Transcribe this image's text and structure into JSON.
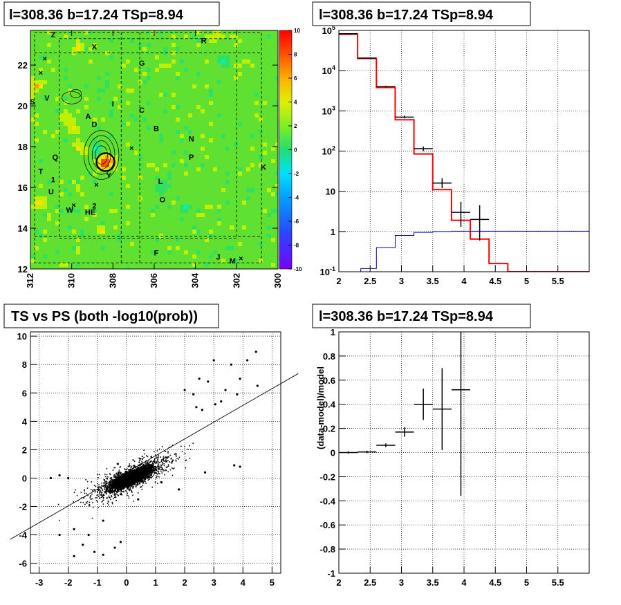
{
  "panels": {
    "skymap": {
      "title": "l=308.36 b=17.24 TSp=8.94"
    },
    "spectrum": {
      "title": "l=308.36 b=17.24 TSp=8.94"
    },
    "scatter": {
      "title": "TS vs PS (both -log10(prob))"
    },
    "residual": {
      "title": "l=308.36 b=17.24 TSp=8.94"
    }
  },
  "chart_data": [
    {
      "type": "heatmap",
      "title": "l=308.36 b=17.24 TSp=8.94",
      "xlim": [
        312,
        300
      ],
      "ylim": [
        12,
        23.7
      ],
      "x_ticks": [
        "312",
        "310",
        "308",
        "306",
        "304",
        "302",
        "300"
      ],
      "y_ticks": [
        "12",
        "14",
        "16",
        "18",
        "20",
        "22"
      ],
      "zlim": [
        -10,
        10
      ],
      "z_ticks": [
        "10",
        "8",
        "6",
        "4",
        "2",
        "0",
        "-2",
        "-4",
        "-6",
        "-8",
        "-10"
      ],
      "palette": [
        "#7a00ff",
        "#2a46ff",
        "#00a0ff",
        "#00d8ff",
        "#00f0c0",
        "#30e060",
        "#60e030",
        "#c0f000",
        "#ffe000",
        "#ffa000",
        "#ff5000",
        "#ff0000"
      ],
      "labels": [
        {
          "text": "Z",
          "x": 310.9,
          "y": 23.5
        },
        {
          "text": "X",
          "x": 308.9,
          "y": 22.9
        },
        {
          "text": "R",
          "x": 303.6,
          "y": 23.2
        },
        {
          "text": "G",
          "x": 306.6,
          "y": 22.1
        },
        {
          "text": "S",
          "x": 311.9,
          "y": 20.2
        },
        {
          "text": "V",
          "x": 311.2,
          "y": 20.4
        },
        {
          "text": "I",
          "x": 308.0,
          "y": 20.1
        },
        {
          "text": "C",
          "x": 306.6,
          "y": 19.8
        },
        {
          "text": "A",
          "x": 309.2,
          "y": 19.5
        },
        {
          "text": "D",
          "x": 308.9,
          "y": 19.1
        },
        {
          "text": "B",
          "x": 305.9,
          "y": 18.9
        },
        {
          "text": "N",
          "x": 304.2,
          "y": 18.4
        },
        {
          "text": "Q",
          "x": 310.8,
          "y": 17.5
        },
        {
          "text": "P",
          "x": 304.2,
          "y": 17.5
        },
        {
          "text": "K",
          "x": 300.7,
          "y": 17.0
        },
        {
          "text": "T",
          "x": 311.5,
          "y": 16.8
        },
        {
          "text": "Y",
          "x": 308.2,
          "y": 16.6
        },
        {
          "text": "1",
          "x": 310.9,
          "y": 16.4
        },
        {
          "text": "L",
          "x": 305.7,
          "y": 16.3
        },
        {
          "text": "U",
          "x": 311.0,
          "y": 15.8
        },
        {
          "text": "O",
          "x": 305.6,
          "y": 15.4
        },
        {
          "text": "W",
          "x": 310.1,
          "y": 14.9
        },
        {
          "text": "2",
          "x": 308.9,
          "y": 15.1
        },
        {
          "text": "HE",
          "x": 309.1,
          "y": 14.8
        },
        {
          "text": "F",
          "x": 305.9,
          "y": 12.8
        },
        {
          "text": "J",
          "x": 302.9,
          "y": 12.6
        },
        {
          "text": "M",
          "x": 302.2,
          "y": 12.4
        }
      ],
      "source_marker": {
        "x": 308.36,
        "y": 17.24
      }
    },
    {
      "type": "line",
      "title": "l=308.36 b=17.24 TSp=8.94",
      "xlim": [
        2,
        6
      ],
      "ylim": [
        0.1,
        100000
      ],
      "yscale": "log",
      "x_ticks": [
        "2",
        "2.5",
        "3",
        "3.5",
        "4",
        "4.5",
        "5",
        "5.5"
      ],
      "y_ticks": [
        "10^-1",
        "1",
        "10",
        "10^2",
        "10^3",
        "10^4",
        "10^5"
      ],
      "series": [
        {
          "type": "step",
          "color": "#ff0000",
          "edges": [
            2,
            2.3,
            2.6,
            2.9,
            3.2,
            3.5,
            3.8,
            4.1,
            4.4,
            4.7,
            5,
            6
          ],
          "values": [
            80000,
            20000,
            3800,
            600,
            85,
            11,
            1.9,
            0.65,
            0.16,
            0.1,
            0.1
          ]
        },
        {
          "type": "step",
          "color": "#0000cc",
          "edges": [
            2.05,
            2.35,
            2.6,
            2.9,
            3.2,
            3.5,
            3.8,
            6
          ],
          "values": [
            0.1,
            0.12,
            0.4,
            0.8,
            0.95,
            1.0,
            1.02
          ]
        },
        {
          "type": "errorbar",
          "color": "#000000",
          "points": [
            {
              "x": 2.15,
              "y": 83000,
              "xerr": 0.15,
              "ylo": 82000,
              "yhi": 84000
            },
            {
              "x": 2.45,
              "y": 20500,
              "xerr": 0.15,
              "ylo": 20000,
              "yhi": 21000
            },
            {
              "x": 2.75,
              "y": 4000,
              "xerr": 0.15,
              "ylo": 3800,
              "yhi": 4200
            },
            {
              "x": 3.05,
              "y": 700,
              "xerr": 0.15,
              "ylo": 650,
              "yhi": 760
            },
            {
              "x": 3.35,
              "y": 115,
              "xerr": 0.15,
              "ylo": 100,
              "yhi": 130
            },
            {
              "x": 3.65,
              "y": 16,
              "xerr": 0.15,
              "ylo": 12,
              "yhi": 21
            },
            {
              "x": 3.95,
              "y": 3.0,
              "xerr": 0.15,
              "ylo": 1.3,
              "yhi": 5.5
            },
            {
              "x": 4.25,
              "y": 2.0,
              "xerr": 0.15,
              "ylo": 0.6,
              "yhi": 4.5
            }
          ]
        }
      ]
    },
    {
      "type": "scatter",
      "title": "TS vs PS (both -log10(prob))",
      "xlim": [
        -3.3,
        5.3
      ],
      "ylim": [
        -6.7,
        10.3
      ],
      "x_ticks": [
        "-3",
        "-2",
        "-1",
        "0",
        "1",
        "2",
        "3",
        "4",
        "5"
      ],
      "y_ticks": [
        "-6",
        "-4",
        "-2",
        "0",
        "2",
        "4",
        "6",
        "8",
        "10"
      ],
      "fit_line": {
        "slope": 1.18,
        "intercept": 0.4
      },
      "outlier_points": [
        [
          4.45,
          8.9
        ],
        [
          4.15,
          8.3
        ],
        [
          3.6,
          8.0
        ],
        [
          3.0,
          8.3
        ],
        [
          4.5,
          6.5
        ],
        [
          3.9,
          7.0
        ],
        [
          3.8,
          5.9
        ],
        [
          3.4,
          6.2
        ],
        [
          2.5,
          7.0
        ],
        [
          2.3,
          5.9
        ],
        [
          2.0,
          6.2
        ],
        [
          2.8,
          6.8
        ],
        [
          3.25,
          5.4
        ],
        [
          3.05,
          5.2
        ],
        [
          3.7,
          0.9
        ],
        [
          3.9,
          0.8
        ],
        [
          2.4,
          5.0
        ],
        [
          2.6,
          4.8
        ],
        [
          -2.3,
          -4.0
        ],
        [
          -1.8,
          -5.5
        ],
        [
          -1.5,
          -4.7
        ],
        [
          -1.1,
          -5.2
        ],
        [
          -0.8,
          -5.4
        ],
        [
          -0.4,
          -4.9
        ],
        [
          -0.2,
          -4.5
        ],
        [
          -2.6,
          0.0
        ],
        [
          -2.3,
          0.2
        ],
        [
          -1.8,
          -3.6
        ],
        [
          -1.3,
          -4.0
        ],
        [
          -0.8,
          -3.0
        ],
        [
          1.2,
          -0.3
        ],
        [
          1.8,
          -0.8
        ],
        [
          2.7,
          0.4
        ],
        [
          -2.0,
          0.0
        ],
        [
          -0.3,
          1.0
        ],
        [
          0.4,
          -1.5
        ]
      ],
      "cloud": {
        "points": 6000,
        "center": [
          0.15,
          0.05
        ],
        "seed": 42
      }
    },
    {
      "type": "scatter",
      "title": "l=308.36 b=17.24 TSp=8.94",
      "ylabel": "(data-model)/model",
      "xlim": [
        2,
        6
      ],
      "ylim": [
        -1,
        1
      ],
      "x_ticks": [
        "2",
        "2.5",
        "3",
        "3.5",
        "4",
        "4.5",
        "5",
        "5.5"
      ],
      "y_ticks": [
        "-1",
        "-0.8",
        "-0.6",
        "-0.4",
        "-0.2",
        "0",
        "0.2",
        "0.4",
        "0.6",
        "0.8",
        "1"
      ],
      "points": [
        {
          "x": 2.15,
          "y": 0.0,
          "xerr": 0.15,
          "ylo": -0.01,
          "yhi": 0.01
        },
        {
          "x": 2.45,
          "y": 0.005,
          "xerr": 0.15,
          "ylo": -0.005,
          "yhi": 0.015
        },
        {
          "x": 2.75,
          "y": 0.06,
          "xerr": 0.15,
          "ylo": 0.045,
          "yhi": 0.075
        },
        {
          "x": 3.05,
          "y": 0.17,
          "xerr": 0.15,
          "ylo": 0.13,
          "yhi": 0.21
        },
        {
          "x": 3.35,
          "y": 0.4,
          "xerr": 0.15,
          "ylo": 0.27,
          "yhi": 0.53
        },
        {
          "x": 3.65,
          "y": 0.36,
          "xerr": 0.15,
          "ylo": 0.02,
          "yhi": 0.7
        },
        {
          "x": 3.95,
          "y": 0.52,
          "xerr": 0.15,
          "ylo": -0.36,
          "yhi": 1.0
        }
      ]
    }
  ]
}
